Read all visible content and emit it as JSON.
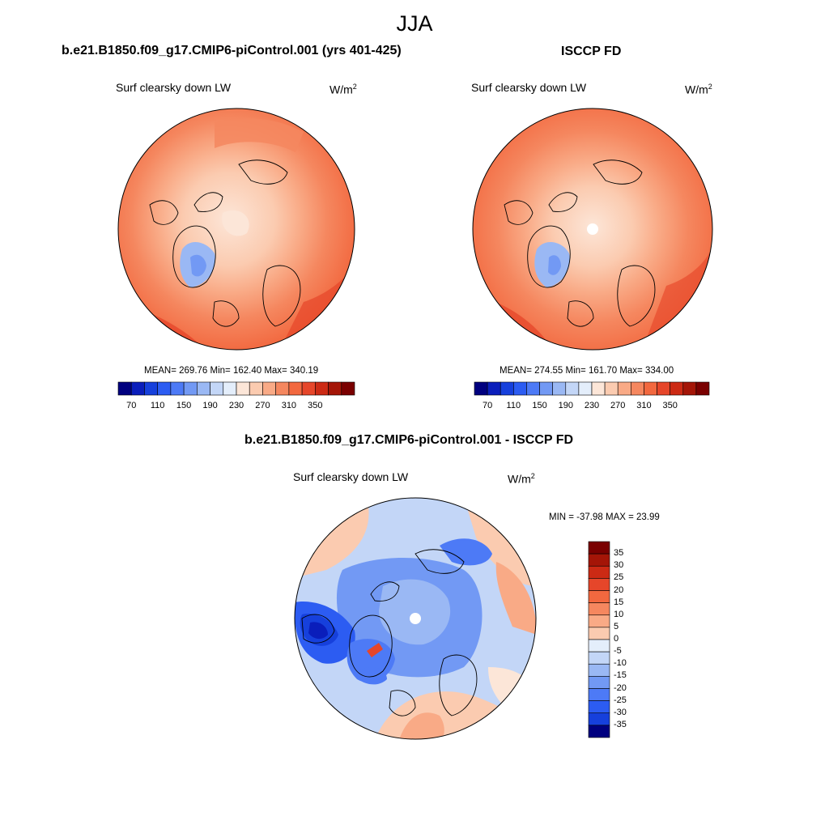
{
  "title": "JJA",
  "colors": {
    "diverging": [
      "#00007f",
      "#0a1ebb",
      "#1640dc",
      "#2c5cf2",
      "#4d7af6",
      "#7299f4",
      "#9ab8f4",
      "#c3d6f7",
      "#e4eefb",
      "#fce6d8",
      "#fbcbb0",
      "#f9aa86",
      "#f5875f",
      "#f2683f",
      "#e6462a",
      "#cc2a14",
      "#a41507",
      "#7a0000"
    ],
    "continent_outline": "#000000"
  },
  "panels": {
    "model": {
      "title": "b.e21.B1850.f09_g17.CMIP6-piControl.001 (yrs 401-425)",
      "variable": "Surf clearsky down LW",
      "units": "W/m",
      "units_exp": "2",
      "stats": "MEAN= 269.76  Min= 162.40  Max= 340.19",
      "colorbar_ticks": [
        "70",
        "110",
        "150",
        "190",
        "230",
        "270",
        "310",
        "350"
      ]
    },
    "obs": {
      "title": "ISCCP FD",
      "variable": "Surf clearsky down LW",
      "units": "W/m",
      "units_exp": "2",
      "stats": "MEAN= 274.55  Min= 161.70  Max= 334.00",
      "colorbar_ticks": [
        "70",
        "110",
        "150",
        "190",
        "230",
        "270",
        "310",
        "350"
      ]
    },
    "diff": {
      "title": "b.e21.B1850.f09_g17.CMIP6-piControl.001 - ISCCP FD",
      "variable": "Surf clearsky down LW",
      "units": "W/m",
      "units_exp": "2",
      "stats": "MIN = -37.98 MAX =  23.99",
      "colorbar_ticks": [
        "35",
        "30",
        "25",
        "20",
        "15",
        "10",
        "5",
        "0",
        "-5",
        "-10",
        "-15",
        "-20",
        "-25",
        "-30",
        "-35"
      ]
    }
  }
}
